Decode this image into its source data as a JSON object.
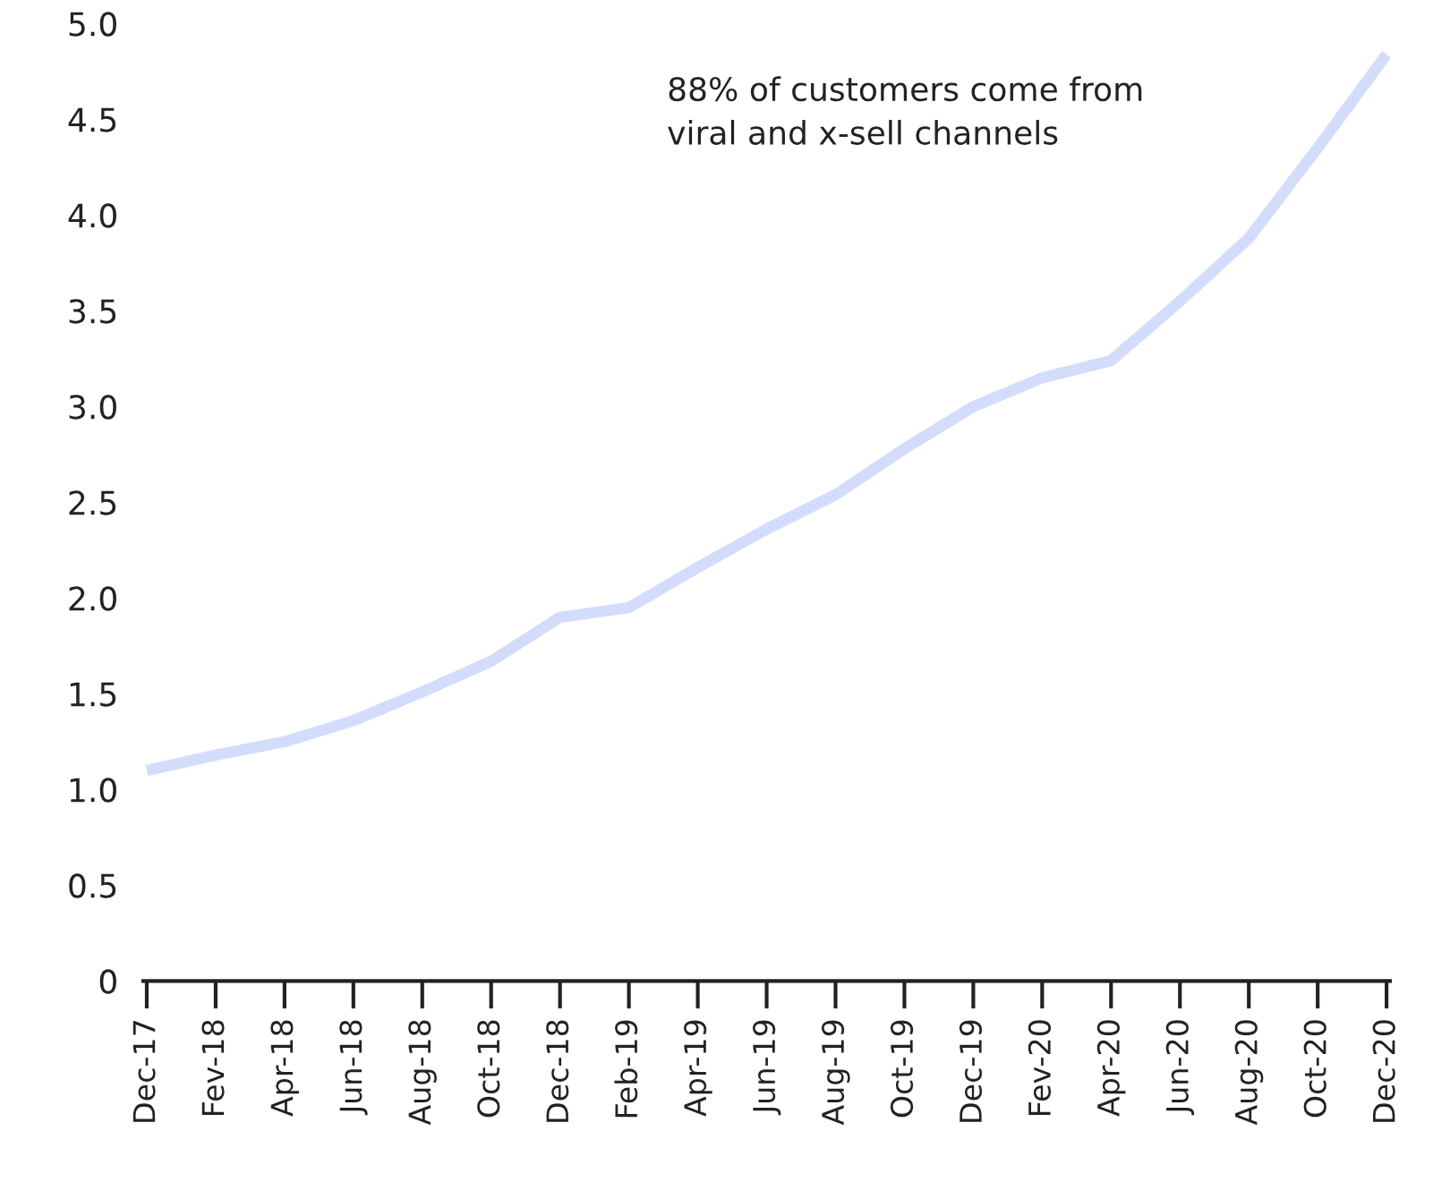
{
  "chart_data": {
    "type": "line",
    "categories": [
      "Dec-17",
      "Fev-18",
      "Apr-18",
      "Jun-18",
      "Aug-18",
      "Oct-18",
      "Dec-18",
      "Feb-19",
      "Apr-19",
      "Jun-19",
      "Aug-19",
      "Oct-19",
      "Dec-19",
      "Fev-20",
      "Apr-20",
      "Jun-20",
      "Aug-20",
      "Oct-20",
      "Dec-20"
    ],
    "series": [
      {
        "color": "#d3ddfb",
        "values": [
          1.1,
          1.18,
          1.25,
          1.36,
          1.51,
          1.67,
          1.9,
          1.95,
          2.16,
          2.36,
          2.54,
          2.78,
          3.0,
          3.15,
          3.24,
          3.55,
          3.88,
          4.35,
          4.84
        ]
      }
    ],
    "ylim": [
      0,
      5
    ],
    "yticks": [
      0,
      0.5,
      {
        "value": 1,
        "label": "1.0"
      },
      1.5,
      {
        "value": 2,
        "label": "2.0"
      },
      2.5,
      {
        "value": 3,
        "label": "3.0"
      },
      3.5,
      {
        "value": 4,
        "label": "4.0"
      },
      4.5,
      {
        "value": 5,
        "label": "5.0"
      }
    ],
    "annotations": [
      "88% of customers come from\nviral and x-sell channels"
    ],
    "grid": false,
    "legend": false,
    "marker": "none",
    "line_style": "solid"
  }
}
